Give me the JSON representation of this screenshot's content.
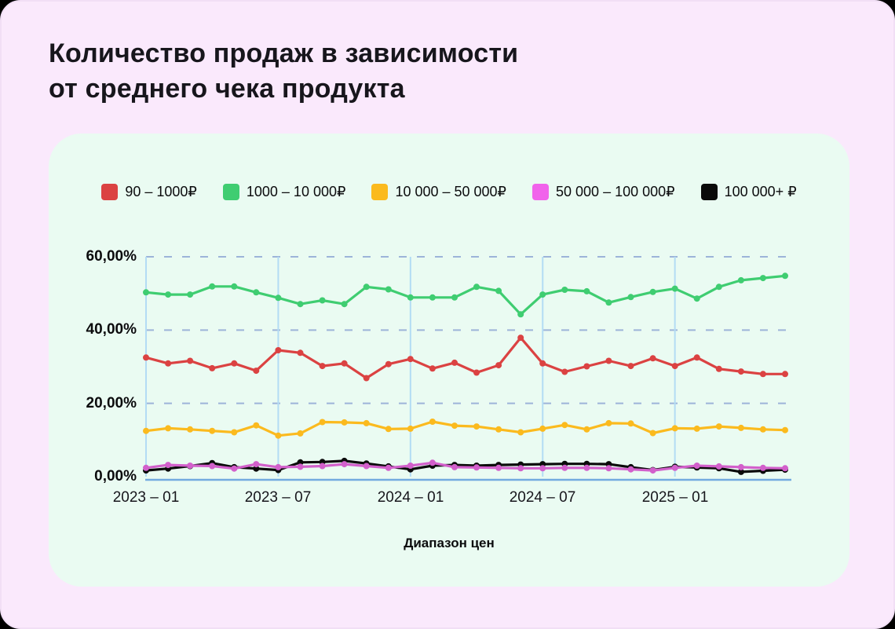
{
  "page": {
    "title": "Количество продаж в зависимости\nот среднего чека продукта"
  },
  "chart_data": {
    "type": "line",
    "title": "Количество продаж в зависимости от среднего чека продукта",
    "xlabel": "Диапазон цен",
    "ylabel": "",
    "ylim": [
      0,
      60
    ],
    "grid": "horizontal-dashed, vertical ticks every 6 months",
    "legend_position": "top",
    "ytick_labels": [
      "0,00%",
      "20,00%",
      "40,00%",
      "60,00%"
    ],
    "xticks": [
      "2023 – 01",
      "2023 – 07",
      "2024 – 01",
      "2024 – 07",
      "2025 – 01"
    ],
    "xtick_month_indices": [
      0,
      6,
      12,
      18,
      24
    ],
    "x": [
      "2023-01",
      "2023-02",
      "2023-03",
      "2023-04",
      "2023-05",
      "2023-06",
      "2023-07",
      "2023-08",
      "2023-09",
      "2023-10",
      "2023-11",
      "2023-12",
      "2024-01",
      "2024-02",
      "2024-03",
      "2024-04",
      "2024-05",
      "2024-06",
      "2024-07",
      "2024-08",
      "2024-09",
      "2024-10",
      "2024-11",
      "2024-12",
      "2025-01",
      "2025-02",
      "2025-03",
      "2025-04",
      "2025-05",
      "2025-06"
    ],
    "unit": "%",
    "series": [
      {
        "name": "90 – 1000₽",
        "color": "#DB4242",
        "values": [
          32.5,
          30.9,
          31.6,
          29.6,
          30.9,
          28.9,
          34.5,
          33.8,
          30.2,
          30.9,
          26.9,
          30.7,
          32.1,
          29.5,
          31.1,
          28.4,
          30.4,
          37.9,
          30.9,
          28.6,
          30.1,
          31.6,
          30.2,
          32.3,
          30.2,
          32.5,
          29.4,
          28.7,
          28.0,
          28.0
        ]
      },
      {
        "name": "1000 – 10 000₽",
        "color": "#3FCD71",
        "values": [
          50.3,
          49.7,
          49.7,
          51.9,
          51.9,
          50.3,
          48.8,
          47.1,
          48.1,
          47.1,
          51.8,
          51.1,
          48.9,
          48.9,
          48.9,
          51.8,
          50.7,
          44.3,
          49.7,
          51.0,
          50.6,
          47.5,
          49.0,
          50.4,
          51.3,
          48.6,
          51.8,
          53.6,
          54.2,
          54.8
        ]
      },
      {
        "name": "10 000 – 50 000₽",
        "color": "#FBBA1E",
        "values": [
          12.5,
          13.2,
          12.9,
          12.5,
          12.1,
          14.0,
          11.2,
          11.8,
          14.9,
          14.8,
          14.6,
          13.0,
          13.1,
          15.0,
          13.9,
          13.7,
          12.9,
          12.1,
          13.1,
          14.1,
          12.9,
          14.6,
          14.5,
          11.9,
          13.2,
          13.1,
          13.7,
          13.3,
          12.9,
          12.7
        ]
      },
      {
        "name": "50 000 – 100 000₽",
        "color": "#D260CB",
        "swatch": "#F163EB",
        "values": [
          2.4,
          3.2,
          3.0,
          2.9,
          2.2,
          3.4,
          2.6,
          2.7,
          2.9,
          3.4,
          2.9,
          2.4,
          3.0,
          3.8,
          2.6,
          2.5,
          2.4,
          2.3,
          2.3,
          2.4,
          2.4,
          2.3,
          2.0,
          1.7,
          2.4,
          3.0,
          2.8,
          2.6,
          2.4,
          2.3
        ]
      },
      {
        "name": "100 000+ ₽",
        "color": "#0A0A0A",
        "values": [
          1.7,
          2.2,
          2.9,
          3.7,
          2.6,
          2.2,
          1.8,
          3.9,
          4.0,
          4.3,
          3.6,
          2.8,
          2.0,
          3.0,
          3.2,
          3.0,
          3.2,
          3.3,
          3.4,
          3.5,
          3.5,
          3.4,
          2.6,
          1.8,
          2.7,
          2.5,
          2.3,
          1.3,
          1.6,
          1.9
        ]
      }
    ],
    "draw_order": [
      1,
      0,
      2,
      4,
      3
    ],
    "style": {
      "page_background": "#FAE9FC",
      "panel_background": "#EAFBF2",
      "grid_dash_color": "#9DB4D9",
      "grid_vertical_color": "#B3DCF4",
      "axis_color": "#73AADF"
    }
  }
}
